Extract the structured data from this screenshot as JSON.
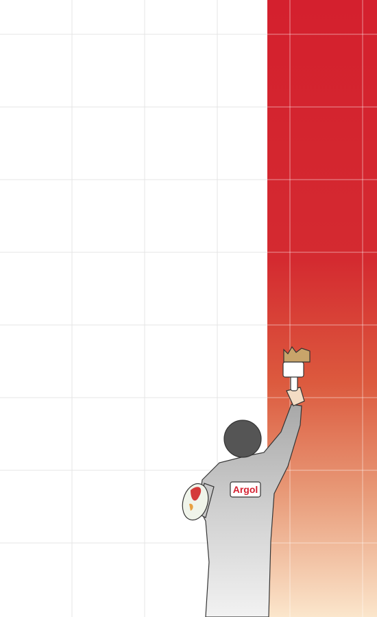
{
  "badge": {
    "text": "Argol"
  }
}
